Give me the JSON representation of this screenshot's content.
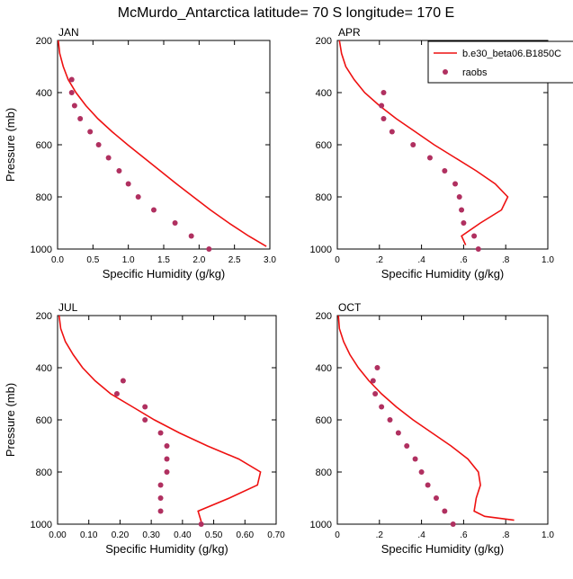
{
  "figure_title": "McMurdo_Antarctica  latitude= 70 S longitude= 170 E",
  "chart_data": [
    {
      "type": "line",
      "title": "JAN",
      "xlabel": "Specific Humidity (g/kg)",
      "ylabel": "Pressure (mb)",
      "xlim": [
        0,
        3.0
      ],
      "ylim": [
        1000,
        200
      ],
      "xticks": [
        "0.0",
        "0.5",
        "1.0",
        "1.5",
        "2.0",
        "2.5",
        "3.0"
      ],
      "yticks": [
        "200",
        "400",
        "600",
        "800",
        "1000"
      ],
      "series": [
        {
          "kind": "line",
          "color": "#ee1111",
          "points": [
            [
              0.01,
              200
            ],
            [
              0.03,
              250
            ],
            [
              0.08,
              300
            ],
            [
              0.15,
              350
            ],
            [
              0.26,
              400
            ],
            [
              0.4,
              450
            ],
            [
              0.57,
              500
            ],
            [
              0.77,
              550
            ],
            [
              0.99,
              600
            ],
            [
              1.22,
              650
            ],
            [
              1.45,
              700
            ],
            [
              1.68,
              750
            ],
            [
              1.92,
              800
            ],
            [
              2.16,
              850
            ],
            [
              2.42,
              900
            ],
            [
              2.7,
              950
            ],
            [
              2.95,
              990
            ]
          ]
        },
        {
          "kind": "scatter",
          "color": "#b03060",
          "points": [
            [
              0.2,
              350
            ],
            [
              0.2,
              400
            ],
            [
              0.24,
              450
            ],
            [
              0.32,
              500
            ],
            [
              0.46,
              550
            ],
            [
              0.58,
              600
            ],
            [
              0.72,
              650
            ],
            [
              0.87,
              700
            ],
            [
              1.0,
              750
            ],
            [
              1.14,
              800
            ],
            [
              1.36,
              850
            ],
            [
              1.66,
              900
            ],
            [
              1.89,
              950
            ],
            [
              2.14,
              1000
            ]
          ]
        }
      ]
    },
    {
      "type": "line",
      "title": "APR",
      "xlabel": "Specific Humidity (g/kg)",
      "ylabel": "",
      "xlim": [
        0,
        1.0
      ],
      "ylim": [
        1000,
        200
      ],
      "xticks": [
        "0",
        ".2",
        ".4",
        ".6",
        ".8",
        "1.0"
      ],
      "yticks": [
        "200",
        "400",
        "600",
        "800",
        "1000"
      ],
      "series": [
        {
          "kind": "line",
          "name": "b.e30_beta06.B1850C",
          "color": "#ee1111",
          "points": [
            [
              0.01,
              200
            ],
            [
              0.02,
              250
            ],
            [
              0.04,
              300
            ],
            [
              0.08,
              350
            ],
            [
              0.13,
              400
            ],
            [
              0.2,
              450
            ],
            [
              0.28,
              500
            ],
            [
              0.37,
              550
            ],
            [
              0.46,
              600
            ],
            [
              0.56,
              650
            ],
            [
              0.66,
              700
            ],
            [
              0.75,
              750
            ],
            [
              0.81,
              800
            ],
            [
              0.78,
              850
            ],
            [
              0.68,
              900
            ],
            [
              0.59,
              950
            ],
            [
              0.61,
              985
            ]
          ]
        },
        {
          "kind": "scatter",
          "name": "raobs",
          "color": "#b03060",
          "points": [
            [
              0.22,
              400
            ],
            [
              0.21,
              450
            ],
            [
              0.22,
              500
            ],
            [
              0.26,
              550
            ],
            [
              0.36,
              600
            ],
            [
              0.44,
              650
            ],
            [
              0.51,
              700
            ],
            [
              0.56,
              750
            ],
            [
              0.58,
              800
            ],
            [
              0.59,
              850
            ],
            [
              0.6,
              900
            ],
            [
              0.65,
              950
            ],
            [
              0.67,
              1000
            ]
          ]
        }
      ],
      "legend": {
        "position": "top-right"
      }
    },
    {
      "type": "line",
      "title": "JUL",
      "xlabel": "Specific Humidity (g/kg)",
      "ylabel": "Pressure (mb)",
      "xlim": [
        0,
        0.7
      ],
      "ylim": [
        1000,
        200
      ],
      "xticks": [
        "0.00",
        "0.10",
        "0.20",
        "0.30",
        "0.40",
        "0.50",
        "0.60",
        "0.70"
      ],
      "yticks": [
        "200",
        "400",
        "600",
        "800",
        "1000"
      ],
      "series": [
        {
          "kind": "line",
          "color": "#ee1111",
          "points": [
            [
              0.005,
              200
            ],
            [
              0.01,
              250
            ],
            [
              0.025,
              300
            ],
            [
              0.05,
              350
            ],
            [
              0.08,
              400
            ],
            [
              0.12,
              450
            ],
            [
              0.17,
              500
            ],
            [
              0.24,
              550
            ],
            [
              0.31,
              600
            ],
            [
              0.39,
              650
            ],
            [
              0.48,
              700
            ],
            [
              0.58,
              750
            ],
            [
              0.65,
              800
            ],
            [
              0.64,
              850
            ],
            [
              0.55,
              900
            ],
            [
              0.45,
              950
            ],
            [
              0.46,
              990
            ]
          ]
        },
        {
          "kind": "scatter",
          "color": "#b03060",
          "points": [
            [
              0.21,
              450
            ],
            [
              0.19,
              500
            ],
            [
              0.28,
              550
            ],
            [
              0.28,
              600
            ],
            [
              0.33,
              650
            ],
            [
              0.35,
              700
            ],
            [
              0.35,
              750
            ],
            [
              0.35,
              800
            ],
            [
              0.33,
              850
            ],
            [
              0.33,
              900
            ],
            [
              0.33,
              950
            ],
            [
              0.46,
              1000
            ]
          ]
        }
      ]
    },
    {
      "type": "line",
      "title": "OCT",
      "xlabel": "Specific Humidity (g/kg)",
      "ylabel": "",
      "xlim": [
        0,
        1.0
      ],
      "ylim": [
        1000,
        200
      ],
      "xticks": [
        "0",
        ".2",
        ".4",
        ".6",
        ".8",
        "1.0"
      ],
      "yticks": [
        "200",
        "400",
        "600",
        "800",
        "1000"
      ],
      "series": [
        {
          "kind": "line",
          "color": "#ee1111",
          "points": [
            [
              0.005,
              200
            ],
            [
              0.01,
              250
            ],
            [
              0.03,
              300
            ],
            [
              0.06,
              350
            ],
            [
              0.1,
              400
            ],
            [
              0.15,
              450
            ],
            [
              0.21,
              500
            ],
            [
              0.28,
              550
            ],
            [
              0.36,
              600
            ],
            [
              0.45,
              650
            ],
            [
              0.54,
              700
            ],
            [
              0.62,
              750
            ],
            [
              0.67,
              800
            ],
            [
              0.68,
              850
            ],
            [
              0.66,
              900
            ],
            [
              0.65,
              950
            ],
            [
              0.7,
              970
            ],
            [
              0.84,
              985
            ]
          ]
        },
        {
          "kind": "scatter",
          "color": "#b03060",
          "points": [
            [
              0.19,
              400
            ],
            [
              0.17,
              450
            ],
            [
              0.18,
              500
            ],
            [
              0.21,
              550
            ],
            [
              0.25,
              600
            ],
            [
              0.29,
              650
            ],
            [
              0.33,
              700
            ],
            [
              0.37,
              750
            ],
            [
              0.4,
              800
            ],
            [
              0.43,
              850
            ],
            [
              0.47,
              900
            ],
            [
              0.51,
              950
            ],
            [
              0.55,
              1000
            ]
          ]
        }
      ]
    }
  ]
}
